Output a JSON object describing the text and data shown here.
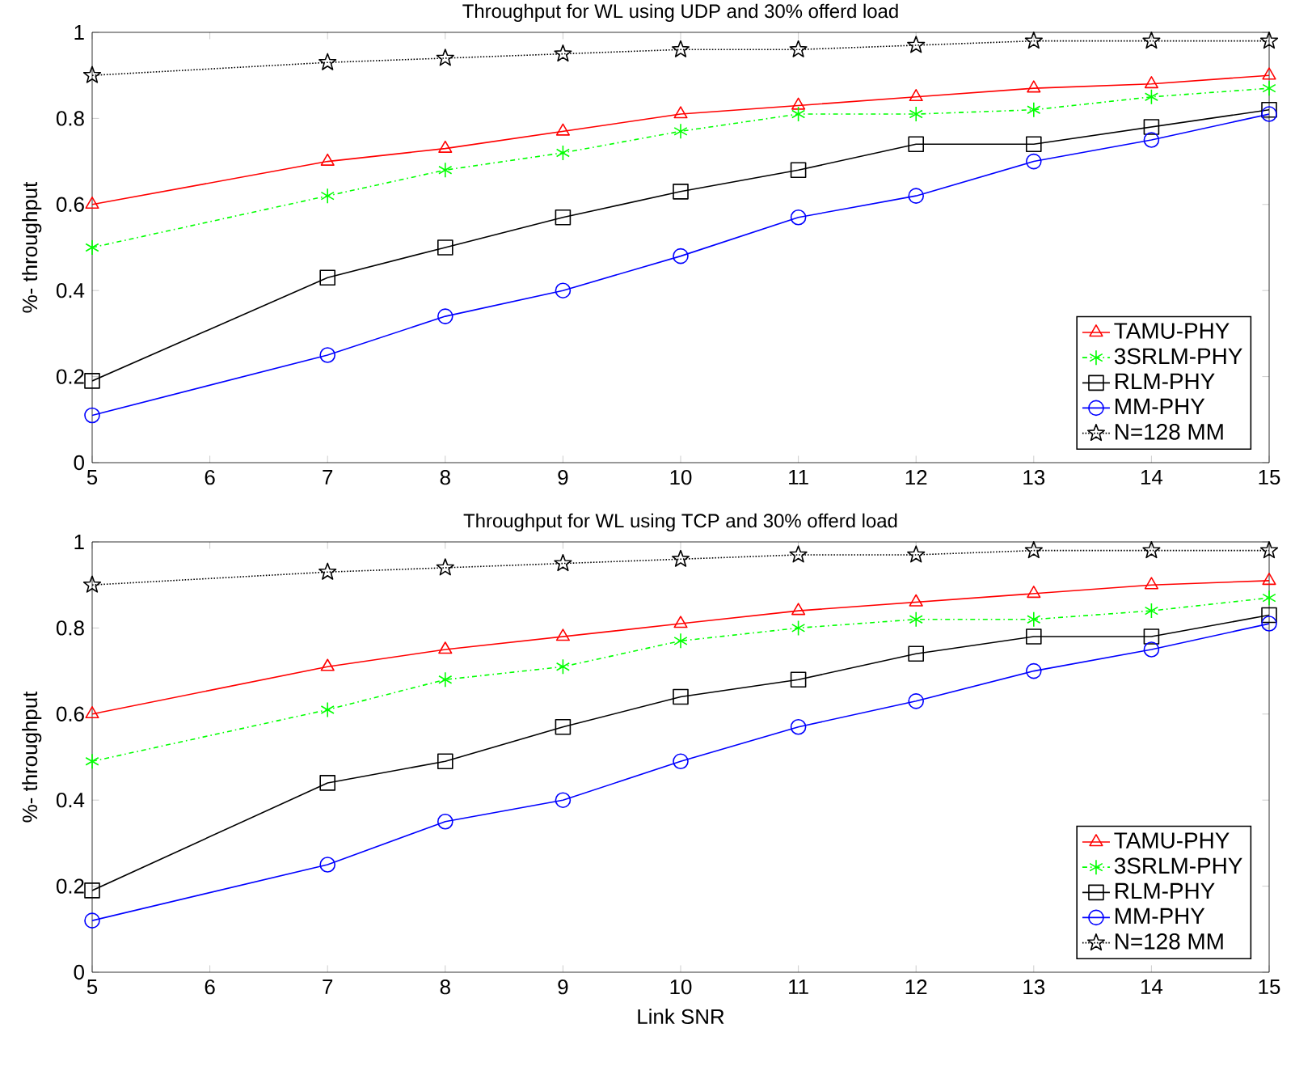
{
  "chart_data": [
    {
      "type": "line",
      "title": "Throughput for WL using UDP and 30% offerd load",
      "ylabel": "%- throughput",
      "x": [
        5,
        7,
        8,
        9,
        10,
        11,
        12,
        13,
        14,
        15
      ],
      "xlim": [
        5,
        15
      ],
      "xticks": [
        5,
        6,
        7,
        8,
        9,
        10,
        11,
        12,
        13,
        14,
        15
      ],
      "ylim": [
        0,
        1
      ],
      "yticks": [
        0,
        0.2,
        0.4,
        0.6,
        0.8,
        1
      ],
      "legend": "bottom right",
      "grid": false,
      "series": [
        {
          "name": "TAMU-PHY",
          "color": "#ff0000",
          "marker": "triangle",
          "line_style": "solid",
          "values": [
            0.6,
            0.7,
            0.73,
            0.77,
            0.81,
            0.83,
            0.85,
            0.87,
            0.88,
            0.9
          ]
        },
        {
          "name": "3SRLM-PHY",
          "color": "#00ff00",
          "marker": "cross",
          "line_style": "dashed",
          "values": [
            0.5,
            0.62,
            0.68,
            0.72,
            0.77,
            0.81,
            0.81,
            0.82,
            0.85,
            0.87
          ]
        },
        {
          "name": "RLM-PHY",
          "color": "#000000",
          "marker": "square",
          "line_style": "solid",
          "values": [
            0.19,
            0.43,
            0.5,
            0.57,
            0.63,
            0.68,
            0.74,
            0.74,
            0.78,
            0.82
          ]
        },
        {
          "name": "MM-PHY",
          "color": "#0000ff",
          "marker": "circle",
          "line_style": "solid",
          "values": [
            0.11,
            0.25,
            0.34,
            0.4,
            0.48,
            0.57,
            0.62,
            0.7,
            0.75,
            0.81
          ]
        },
        {
          "name": "N=128 MM",
          "color": "#000000",
          "marker": "star",
          "line_style": "dotted",
          "values": [
            0.9,
            0.93,
            0.94,
            0.95,
            0.96,
            0.96,
            0.97,
            0.98,
            0.98,
            0.98
          ]
        }
      ]
    },
    {
      "type": "line",
      "title": "Throughput for WL using TCP and 30% offerd load",
      "xlabel": "Link SNR",
      "ylabel": "%- throughput",
      "x": [
        5,
        7,
        8,
        9,
        10,
        11,
        12,
        13,
        14,
        15
      ],
      "xlim": [
        5,
        15
      ],
      "xticks": [
        5,
        6,
        7,
        8,
        9,
        10,
        11,
        12,
        13,
        14,
        15
      ],
      "ylim": [
        0,
        1
      ],
      "yticks": [
        0,
        0.2,
        0.4,
        0.6,
        0.8,
        1
      ],
      "legend": "bottom right",
      "grid": false,
      "series": [
        {
          "name": "TAMU-PHY",
          "color": "#ff0000",
          "marker": "triangle",
          "line_style": "solid",
          "values": [
            0.6,
            0.71,
            0.75,
            0.78,
            0.81,
            0.84,
            0.86,
            0.88,
            0.9,
            0.91
          ]
        },
        {
          "name": "3SRLM-PHY",
          "color": "#00ff00",
          "marker": "cross",
          "line_style": "dashed",
          "values": [
            0.49,
            0.61,
            0.68,
            0.71,
            0.77,
            0.8,
            0.82,
            0.82,
            0.84,
            0.87
          ]
        },
        {
          "name": "RLM-PHY",
          "color": "#000000",
          "marker": "square",
          "line_style": "solid",
          "values": [
            0.19,
            0.44,
            0.49,
            0.57,
            0.64,
            0.68,
            0.74,
            0.78,
            0.78,
            0.83
          ]
        },
        {
          "name": "MM-PHY",
          "color": "#0000ff",
          "marker": "circle",
          "line_style": "solid",
          "values": [
            0.12,
            0.25,
            0.35,
            0.4,
            0.49,
            0.57,
            0.63,
            0.7,
            0.75,
            0.81
          ]
        },
        {
          "name": "N=128 MM",
          "color": "#000000",
          "marker": "star",
          "line_style": "dotted",
          "values": [
            0.9,
            0.93,
            0.94,
            0.95,
            0.96,
            0.97,
            0.97,
            0.98,
            0.98,
            0.98
          ]
        }
      ]
    }
  ]
}
